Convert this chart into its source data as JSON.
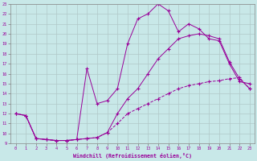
{
  "background_color": "#c8e8e8",
  "grid_color": "#b0c8c8",
  "line_color": "#990099",
  "xlim": [
    -0.5,
    23.5
  ],
  "ylim": [
    9,
    23
  ],
  "xticks": [
    0,
    1,
    2,
    3,
    4,
    5,
    6,
    7,
    8,
    9,
    10,
    11,
    12,
    13,
    14,
    15,
    16,
    17,
    18,
    19,
    20,
    21,
    22,
    23
  ],
  "yticks": [
    9,
    10,
    11,
    12,
    13,
    14,
    15,
    16,
    17,
    18,
    19,
    20,
    21,
    22,
    23
  ],
  "xlabel": "Windchill (Refroidissement éolien,°C)",
  "curve1_x": [
    0,
    1,
    2,
    3,
    4,
    5,
    6,
    7,
    8,
    9,
    10,
    11,
    12,
    13,
    14,
    15,
    16,
    17,
    18,
    19,
    20,
    21,
    22,
    23
  ],
  "curve1_y": [
    12.0,
    11.8,
    9.5,
    9.4,
    9.3,
    9.3,
    9.4,
    9.5,
    9.6,
    10.1,
    11.0,
    12.0,
    12.5,
    13.0,
    13.5,
    14.0,
    14.5,
    14.8,
    15.0,
    15.2,
    15.3,
    15.5,
    15.6,
    14.5
  ],
  "curve2_x": [
    0,
    1,
    2,
    3,
    4,
    5,
    6,
    7,
    8,
    9,
    10,
    11,
    12,
    13,
    14,
    15,
    16,
    17,
    18,
    19,
    20,
    21,
    22,
    23
  ],
  "curve2_y": [
    12.0,
    11.8,
    9.5,
    9.4,
    9.3,
    9.3,
    9.4,
    16.5,
    13.0,
    13.3,
    14.5,
    19.0,
    21.5,
    22.0,
    23.0,
    22.3,
    20.2,
    21.0,
    20.5,
    19.5,
    19.3,
    17.0,
    15.2,
    15.0
  ],
  "curve3_x": [
    0,
    1,
    2,
    3,
    4,
    5,
    6,
    7,
    8,
    9,
    10,
    11,
    12,
    13,
    14,
    15,
    16,
    17,
    18,
    19,
    20,
    21,
    22,
    23
  ],
  "curve3_y": [
    12.0,
    11.8,
    9.5,
    9.4,
    9.3,
    9.3,
    9.4,
    9.5,
    9.6,
    10.1,
    12.0,
    13.5,
    14.5,
    16.0,
    17.5,
    18.5,
    19.5,
    19.8,
    20.0,
    19.8,
    19.5,
    17.2,
    15.5,
    14.5
  ]
}
